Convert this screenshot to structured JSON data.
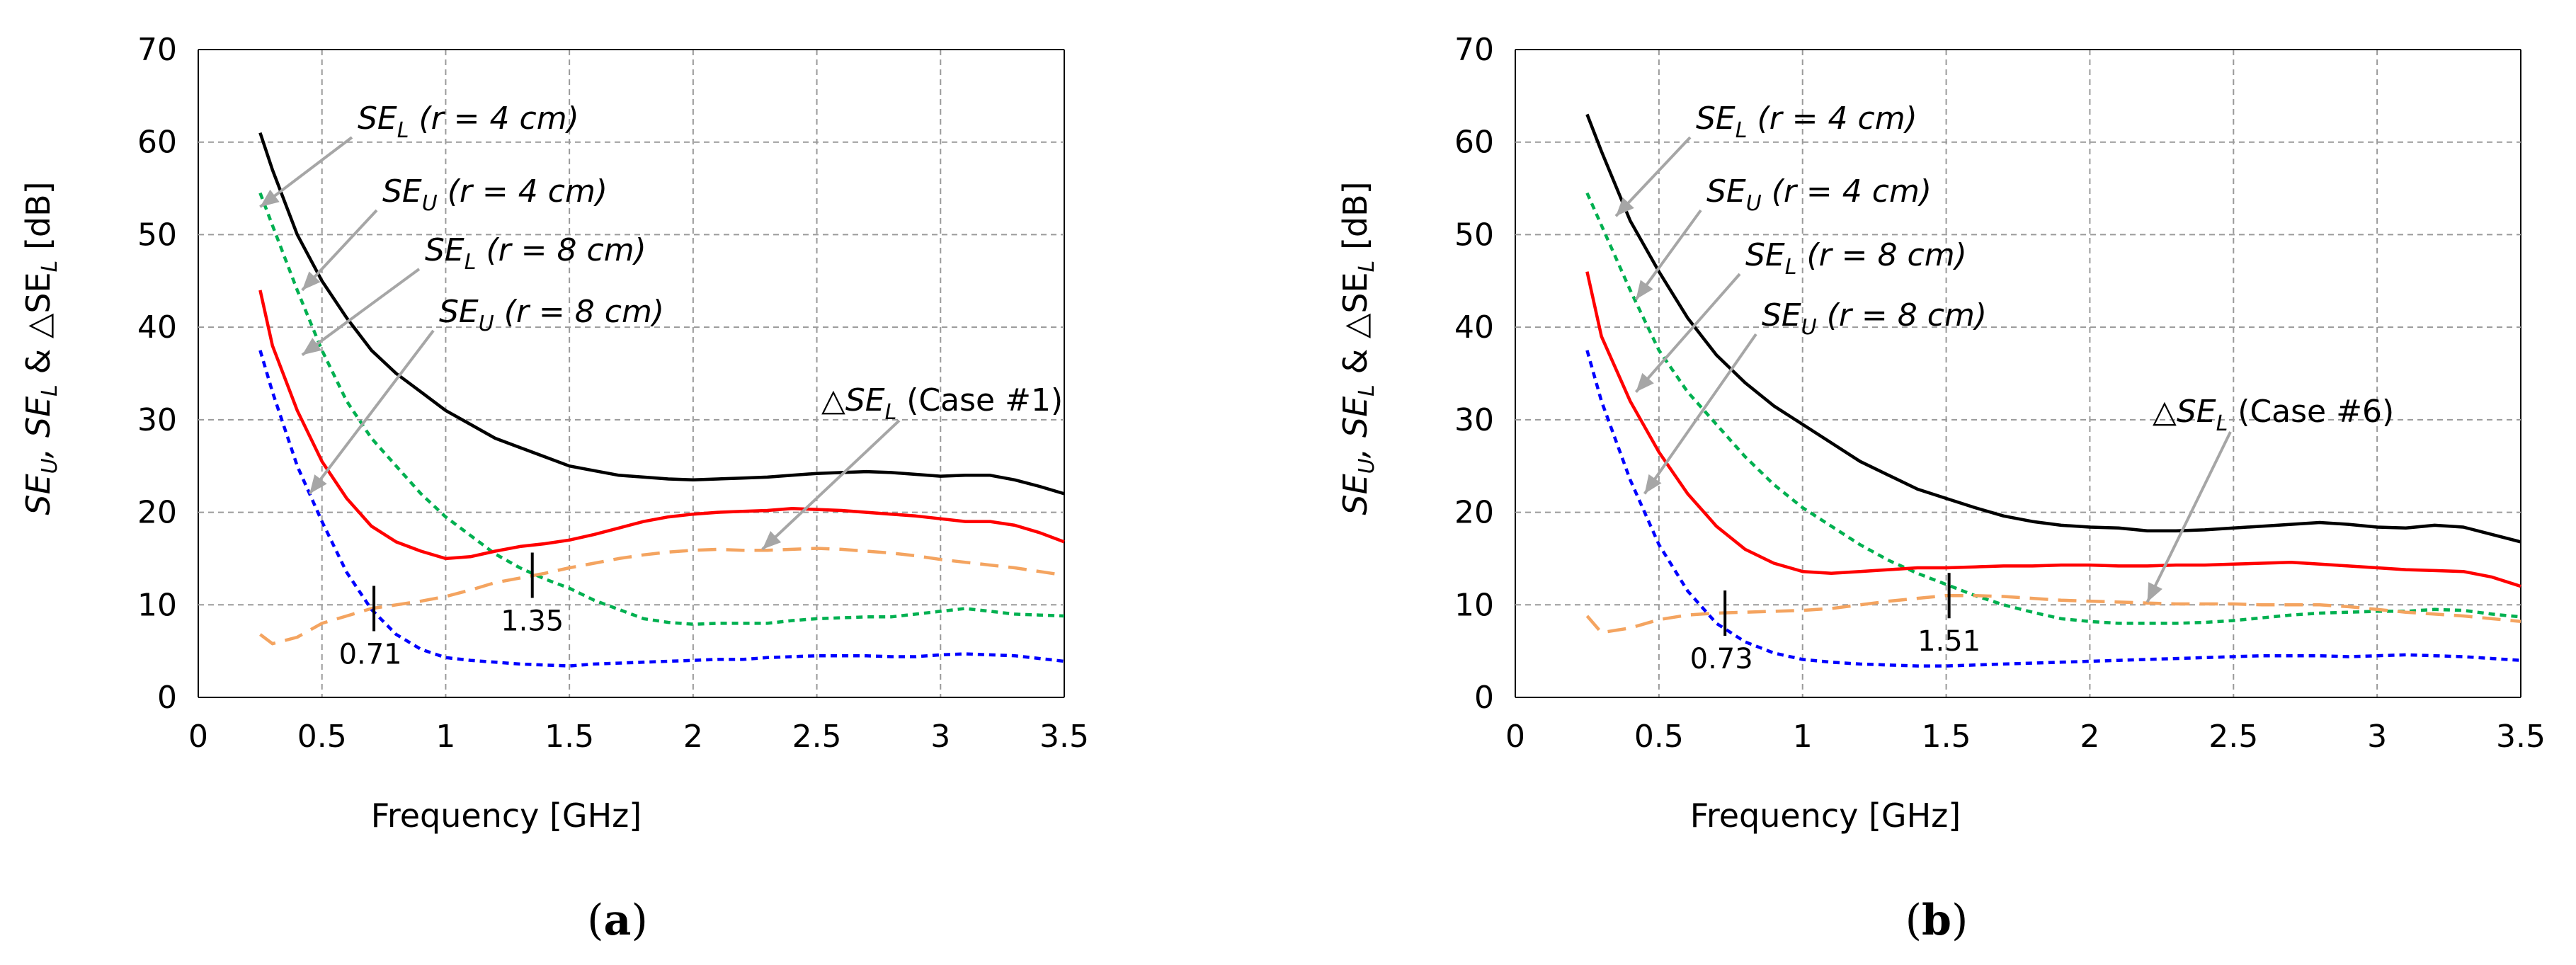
{
  "chart_data": [
    {
      "type": "line",
      "panel_label": "(a)",
      "panel_letter": "a",
      "xlabel": "Frequency [GHz]",
      "ylabel": "SE_U, SE_L & △SE_L [dB]",
      "xlim": [
        0,
        3.5
      ],
      "ylim": [
        0,
        70
      ],
      "xticks": [
        "0",
        "0.5",
        "1",
        "1.5",
        "2",
        "2.5",
        "3",
        "3.5"
      ],
      "yticks": [
        "0",
        "10",
        "20",
        "30",
        "40",
        "50",
        "60",
        "70"
      ],
      "grid": true,
      "series": [
        {
          "name": "SE_L (r = 4 cm)",
          "color": "#000000",
          "style": "solid",
          "x": [
            0.25,
            0.3,
            0.4,
            0.5,
            0.6,
            0.7,
            0.8,
            0.9,
            1.0,
            1.1,
            1.2,
            1.3,
            1.4,
            1.5,
            1.6,
            1.7,
            1.8,
            1.9,
            2.0,
            2.1,
            2.2,
            2.3,
            2.4,
            2.5,
            2.6,
            2.7,
            2.8,
            2.9,
            3.0,
            3.1,
            3.2,
            3.3,
            3.4,
            3.5
          ],
          "y": [
            61,
            57,
            50,
            45,
            41,
            37.5,
            35,
            33,
            31,
            29.5,
            28,
            27,
            26,
            25,
            24.5,
            24,
            23.8,
            23.6,
            23.5,
            23.6,
            23.7,
            23.8,
            24,
            24.2,
            24.3,
            24.4,
            24.3,
            24.1,
            23.9,
            24,
            24,
            23.5,
            22.8,
            22
          ]
        },
        {
          "name": "SE_U (r = 4 cm)",
          "color": "#00b050",
          "style": "dotted",
          "x": [
            0.25,
            0.3,
            0.4,
            0.5,
            0.6,
            0.7,
            0.8,
            0.9,
            1.0,
            1.1,
            1.2,
            1.3,
            1.4,
            1.5,
            1.6,
            1.7,
            1.8,
            1.9,
            2.0,
            2.1,
            2.2,
            2.3,
            2.4,
            2.5,
            2.6,
            2.7,
            2.8,
            2.9,
            3.0,
            3.1,
            3.2,
            3.3,
            3.4,
            3.5
          ],
          "y": [
            54.5,
            51,
            44,
            37.5,
            32,
            28,
            25,
            22,
            19.5,
            17.5,
            15.5,
            14,
            12.8,
            11.8,
            10.5,
            9.5,
            8.5,
            8.1,
            7.9,
            8,
            8,
            8,
            8.3,
            8.5,
            8.6,
            8.7,
            8.7,
            9,
            9.3,
            9.6,
            9.3,
            9,
            8.9,
            8.8
          ]
        },
        {
          "name": "SE_L (r = 8 cm)",
          "color": "#ff0000",
          "style": "solid",
          "x": [
            0.25,
            0.3,
            0.4,
            0.5,
            0.6,
            0.7,
            0.8,
            0.9,
            1.0,
            1.1,
            1.2,
            1.3,
            1.4,
            1.5,
            1.6,
            1.7,
            1.8,
            1.9,
            2.0,
            2.1,
            2.2,
            2.3,
            2.4,
            2.5,
            2.6,
            2.7,
            2.8,
            2.9,
            3.0,
            3.1,
            3.2,
            3.3,
            3.4,
            3.5
          ],
          "y": [
            44,
            38,
            31,
            25.5,
            21.5,
            18.5,
            16.8,
            15.8,
            15,
            15.2,
            15.8,
            16.3,
            16.6,
            17,
            17.6,
            18.3,
            19,
            19.5,
            19.8,
            20,
            20.1,
            20.2,
            20.4,
            20.3,
            20.2,
            20,
            19.8,
            19.6,
            19.3,
            19,
            19,
            18.6,
            17.8,
            16.8
          ]
        },
        {
          "name": "SE_U (r = 8 cm)",
          "color": "#0000ff",
          "style": "dotted",
          "x": [
            0.25,
            0.3,
            0.4,
            0.5,
            0.6,
            0.7,
            0.8,
            0.9,
            1.0,
            1.1,
            1.2,
            1.3,
            1.4,
            1.5,
            1.6,
            1.7,
            1.8,
            1.9,
            2.0,
            2.1,
            2.2,
            2.3,
            2.4,
            2.5,
            2.6,
            2.7,
            2.8,
            2.9,
            3.0,
            3.1,
            3.2,
            3.3,
            3.4,
            3.5
          ],
          "y": [
            37.5,
            33,
            25,
            19,
            13.5,
            9.5,
            6.8,
            5.2,
            4.3,
            4,
            3.8,
            3.6,
            3.5,
            3.4,
            3.6,
            3.7,
            3.8,
            3.9,
            4,
            4.1,
            4.1,
            4.3,
            4.4,
            4.5,
            4.5,
            4.5,
            4.4,
            4.4,
            4.6,
            4.7,
            4.6,
            4.5,
            4.2,
            3.9
          ]
        },
        {
          "name": "△SE_L (Case #1)",
          "color": "#f4a460",
          "style": "dashed",
          "x": [
            0.25,
            0.3,
            0.4,
            0.5,
            0.6,
            0.7,
            0.8,
            0.9,
            1.0,
            1.1,
            1.2,
            1.3,
            1.4,
            1.5,
            1.6,
            1.7,
            1.8,
            1.9,
            2.0,
            2.1,
            2.2,
            2.3,
            2.4,
            2.5,
            2.6,
            2.7,
            2.8,
            2.9,
            3.0,
            3.1,
            3.2,
            3.3,
            3.4,
            3.5
          ],
          "y": [
            6.8,
            5.8,
            6.5,
            8,
            8.8,
            9.6,
            10,
            10.4,
            10.9,
            11.6,
            12.4,
            12.9,
            13.4,
            14,
            14.5,
            15,
            15.4,
            15.7,
            15.9,
            16,
            15.9,
            15.9,
            16,
            16.1,
            16,
            15.8,
            15.6,
            15.3,
            14.9,
            14.6,
            14.3,
            14,
            13.6,
            13.2
          ]
        }
      ],
      "annotations": [
        {
          "main": "SE",
          "sub": "L",
          "rest": " (r = 4 cm)",
          "point": [
            0.25,
            53
          ]
        },
        {
          "main": "SE",
          "sub": "U",
          "rest": " (r = 4 cm)",
          "point": [
            0.42,
            44
          ]
        },
        {
          "main": "SE",
          "sub": "L",
          "rest": " (r = 8 cm)",
          "point": [
            0.42,
            37
          ]
        },
        {
          "main": "SE",
          "sub": "U",
          "rest": " (r = 8 cm)",
          "point": [
            0.45,
            22
          ]
        },
        {
          "main": "△SE",
          "sub": "L",
          "rest": " (Case #1)",
          "point": [
            2.28,
            16
          ]
        }
      ],
      "markers": [
        {
          "x": 0.71,
          "y": 9.6,
          "label": "0.71"
        },
        {
          "x": 1.35,
          "y": 13.2,
          "label": "1.35"
        }
      ]
    },
    {
      "type": "line",
      "panel_label": "(b)",
      "panel_letter": "b",
      "xlabel": "Frequency [GHz]",
      "ylabel": "SE_U, SE_L & △SE_L [dB]",
      "xlim": [
        0,
        3.5
      ],
      "ylim": [
        0,
        70
      ],
      "xticks": [
        "0",
        "0.5",
        "1",
        "1.5",
        "2",
        "2.5",
        "3",
        "3.5"
      ],
      "yticks": [
        "0",
        "10",
        "20",
        "30",
        "40",
        "50",
        "60",
        "70"
      ],
      "grid": true,
      "series": [
        {
          "name": "SE_L (r = 4 cm)",
          "color": "#000000",
          "style": "solid",
          "x": [
            0.25,
            0.3,
            0.4,
            0.5,
            0.6,
            0.7,
            0.8,
            0.9,
            1.0,
            1.1,
            1.2,
            1.3,
            1.4,
            1.5,
            1.6,
            1.7,
            1.8,
            1.9,
            2.0,
            2.1,
            2.2,
            2.3,
            2.4,
            2.5,
            2.6,
            2.7,
            2.8,
            2.9,
            3.0,
            3.1,
            3.2,
            3.3,
            3.4,
            3.5
          ],
          "y": [
            63,
            59,
            51.5,
            46,
            41,
            37,
            34,
            31.5,
            29.5,
            27.5,
            25.5,
            24,
            22.5,
            21.5,
            20.5,
            19.6,
            19,
            18.6,
            18.4,
            18.3,
            18,
            18,
            18.1,
            18.3,
            18.5,
            18.7,
            18.9,
            18.7,
            18.4,
            18.3,
            18.6,
            18.4,
            17.6,
            16.8
          ]
        },
        {
          "name": "SE_U (r = 4 cm)",
          "color": "#00b050",
          "style": "dotted",
          "x": [
            0.25,
            0.3,
            0.4,
            0.5,
            0.6,
            0.7,
            0.8,
            0.9,
            1.0,
            1.1,
            1.2,
            1.3,
            1.4,
            1.5,
            1.6,
            1.7,
            1.8,
            1.9,
            2.0,
            2.1,
            2.2,
            2.3,
            2.4,
            2.5,
            2.6,
            2.7,
            2.8,
            2.9,
            3.0,
            3.1,
            3.2,
            3.3,
            3.4,
            3.5
          ],
          "y": [
            54.5,
            51,
            44,
            37.5,
            33,
            29.5,
            26,
            23,
            20.5,
            18.5,
            16.5,
            14.8,
            13.4,
            12.2,
            11,
            10,
            9.2,
            8.5,
            8.2,
            8,
            8,
            8,
            8.1,
            8.3,
            8.6,
            8.9,
            9.1,
            9.2,
            9.3,
            9.3,
            9.5,
            9.4,
            9,
            8.7
          ]
        },
        {
          "name": "SE_L (r = 8 cm)",
          "color": "#ff0000",
          "style": "solid",
          "x": [
            0.25,
            0.3,
            0.4,
            0.5,
            0.6,
            0.7,
            0.8,
            0.9,
            1.0,
            1.1,
            1.2,
            1.3,
            1.4,
            1.5,
            1.6,
            1.7,
            1.8,
            1.9,
            2.0,
            2.1,
            2.2,
            2.3,
            2.4,
            2.5,
            2.6,
            2.7,
            2.8,
            2.9,
            3.0,
            3.1,
            3.2,
            3.3,
            3.4,
            3.5
          ],
          "y": [
            46,
            39,
            32,
            26.5,
            22,
            18.5,
            16,
            14.5,
            13.6,
            13.4,
            13.6,
            13.8,
            14,
            14,
            14.1,
            14.2,
            14.2,
            14.3,
            14.3,
            14.2,
            14.2,
            14.3,
            14.3,
            14.4,
            14.5,
            14.6,
            14.4,
            14.2,
            14,
            13.8,
            13.7,
            13.6,
            13,
            12
          ]
        },
        {
          "name": "SE_U (r = 8 cm)",
          "color": "#0000ff",
          "style": "dotted",
          "x": [
            0.25,
            0.3,
            0.4,
            0.5,
            0.6,
            0.7,
            0.8,
            0.9,
            1.0,
            1.1,
            1.2,
            1.3,
            1.4,
            1.5,
            1.6,
            1.7,
            1.8,
            1.9,
            2.0,
            2.1,
            2.2,
            2.3,
            2.4,
            2.5,
            2.6,
            2.7,
            2.8,
            2.9,
            3.0,
            3.1,
            3.2,
            3.3,
            3.4,
            3.5
          ],
          "y": [
            37.5,
            32,
            23.5,
            16.5,
            11.5,
            8,
            6,
            4.8,
            4.1,
            3.8,
            3.6,
            3.5,
            3.4,
            3.4,
            3.5,
            3.6,
            3.7,
            3.8,
            3.9,
            4,
            4.1,
            4.2,
            4.3,
            4.4,
            4.5,
            4.5,
            4.5,
            4.4,
            4.5,
            4.6,
            4.5,
            4.4,
            4.2,
            4
          ]
        },
        {
          "name": "△SE_L (Case #6)",
          "color": "#f4a460",
          "style": "dashed",
          "x": [
            0.25,
            0.3,
            0.4,
            0.5,
            0.6,
            0.7,
            0.8,
            0.9,
            1.0,
            1.1,
            1.2,
            1.3,
            1.4,
            1.5,
            1.6,
            1.7,
            1.8,
            1.9,
            2.0,
            2.1,
            2.2,
            2.3,
            2.4,
            2.5,
            2.6,
            2.7,
            2.8,
            2.9,
            3.0,
            3.1,
            3.2,
            3.3,
            3.4,
            3.5
          ],
          "y": [
            8.8,
            7,
            7.5,
            8.4,
            8.9,
            9.1,
            9.2,
            9.3,
            9.4,
            9.6,
            10,
            10.4,
            10.7,
            11,
            11,
            10.9,
            10.7,
            10.5,
            10.4,
            10.3,
            10.2,
            10.1,
            10.1,
            10.1,
            10,
            10,
            10,
            9.8,
            9.5,
            9.2,
            9,
            8.8,
            8.5,
            8.2
          ]
        }
      ],
      "annotations": [
        {
          "main": "SE",
          "sub": "L",
          "rest": " (r = 4 cm)",
          "point": [
            0.35,
            52
          ]
        },
        {
          "main": "SE",
          "sub": "U",
          "rest": " (r = 4 cm)",
          "point": [
            0.42,
            43
          ]
        },
        {
          "main": "SE",
          "sub": "L",
          "rest": " (r = 8 cm)",
          "point": [
            0.42,
            33
          ]
        },
        {
          "main": "SE",
          "sub": "U",
          "rest": " (r = 8 cm)",
          "point": [
            0.45,
            22
          ]
        },
        {
          "main": "△SE",
          "sub": "L",
          "rest": " (Case #6)",
          "point": [
            2.2,
            10.3
          ]
        }
      ],
      "markers": [
        {
          "x": 0.73,
          "y": 9.1,
          "label": "0.73"
        },
        {
          "x": 1.51,
          "y": 11.0,
          "label": "1.51"
        }
      ]
    }
  ]
}
